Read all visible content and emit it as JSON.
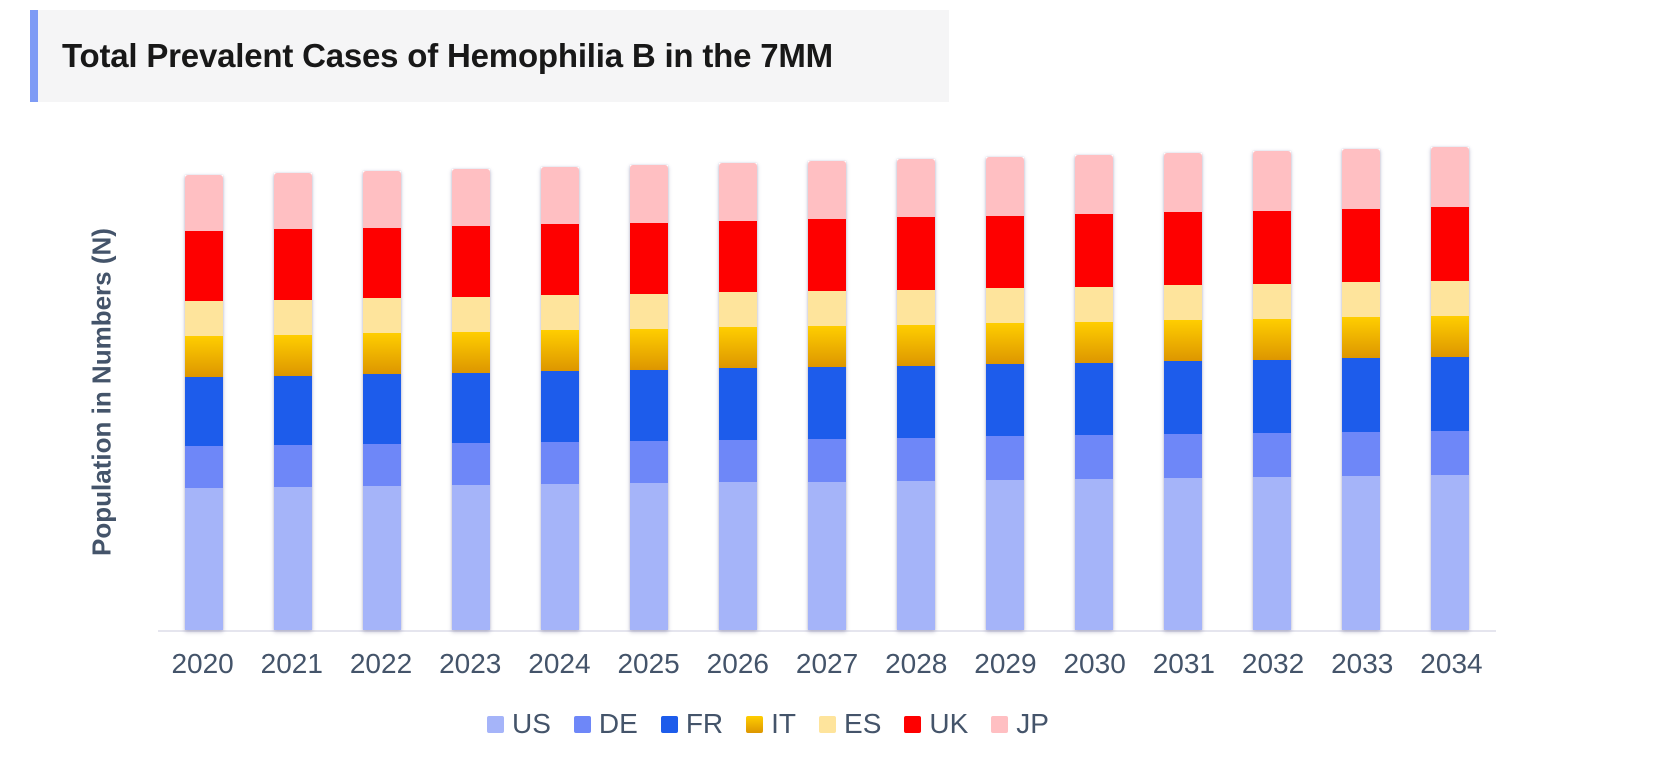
{
  "title": {
    "text": "Total Prevalent Cases of Hemophilia B in the 7MM"
  },
  "y_axis": {
    "label": "Population in Numbers (N)",
    "ticks": []
  },
  "x_axis": {
    "categories": [
      "2020",
      "2021",
      "2022",
      "2023",
      "2024",
      "2025",
      "2026",
      "2027",
      "2028",
      "2029",
      "2030",
      "2031",
      "2032",
      "2033",
      "2034"
    ]
  },
  "legend": {
    "labels": [
      "US",
      "DE",
      "FR",
      "IT",
      "ES",
      "UK",
      "JP"
    ],
    "position": "bottom"
  },
  "colors": {
    "title_accent": "#7e9bf5",
    "title_background": "#f5f5f6",
    "axis_text": "#44546a",
    "baseline": "#e5e5ee",
    "US": "#a5b4f9",
    "DE": "#6e87f8",
    "FR": "#1d5ceb",
    "IT_gradient_top": "#ffce00",
    "IT_gradient_bottom": "#dd9600",
    "ES": "#fee49c",
    "UK": "#fe0000",
    "JP": "#ffbfc2"
  },
  "chart_data": {
    "type": "bar",
    "stacked": true,
    "title": "Total Prevalent Cases of Hemophilia B in the 7MM",
    "xlabel": "",
    "ylabel": "Population in Numbers (N)",
    "y_ticks": [],
    "units": "relative stacked heights (no numeric axis labels shown in chart)",
    "legend_position": "bottom",
    "categories": [
      "2020",
      "2021",
      "2022",
      "2023",
      "2024",
      "2025",
      "2026",
      "2027",
      "2028",
      "2029",
      "2030",
      "2031",
      "2032",
      "2033",
      "2034"
    ],
    "series": [
      {
        "name": "US",
        "color": "#a5b4f9",
        "values": [
          142.0,
          142.9,
          143.9,
          144.8,
          145.7,
          146.6,
          147.6,
          148.5,
          149.4,
          150.4,
          151.3,
          152.2,
          153.1,
          154.1,
          155.0
        ]
      },
      {
        "name": "DE",
        "color": "#6e87f8",
        "values": [
          42.0,
          42.1,
          42.3,
          42.4,
          42.6,
          42.7,
          42.9,
          43.0,
          43.1,
          43.3,
          43.4,
          43.6,
          43.7,
          43.9,
          44.0
        ]
      },
      {
        "name": "FR",
        "color": "#1d5ceb",
        "values": [
          69.0,
          69.4,
          69.7,
          70.1,
          70.4,
          70.8,
          71.1,
          71.5,
          71.9,
          72.2,
          72.6,
          72.9,
          73.3,
          73.6,
          74.0
        ]
      },
      {
        "name": "IT",
        "color": "#eab000",
        "gradient": [
          "#ffce00",
          "#dd9600"
        ],
        "values": [
          41.0,
          41.0,
          41.0,
          41.0,
          41.0,
          41.0,
          41.0,
          41.0,
          41.0,
          41.0,
          41.0,
          41.0,
          41.0,
          41.0,
          41.0
        ]
      },
      {
        "name": "ES",
        "color": "#fee49c",
        "values": [
          35.0,
          35.0,
          35.0,
          35.0,
          35.0,
          35.0,
          35.0,
          35.0,
          35.0,
          35.0,
          35.0,
          35.0,
          35.0,
          35.0,
          35.0
        ]
      },
      {
        "name": "UK",
        "color": "#fe0000",
        "values": [
          70.0,
          70.3,
          70.6,
          70.9,
          71.1,
          71.4,
          71.7,
          72.0,
          72.3,
          72.6,
          72.9,
          73.1,
          73.4,
          73.7,
          74.0
        ]
      },
      {
        "name": "JP",
        "color": "#ffbfc2",
        "values": [
          56.0,
          56.3,
          56.6,
          56.9,
          57.1,
          57.4,
          57.7,
          58.0,
          58.3,
          58.6,
          58.9,
          59.1,
          59.4,
          59.7,
          60.0
        ]
      }
    ]
  }
}
